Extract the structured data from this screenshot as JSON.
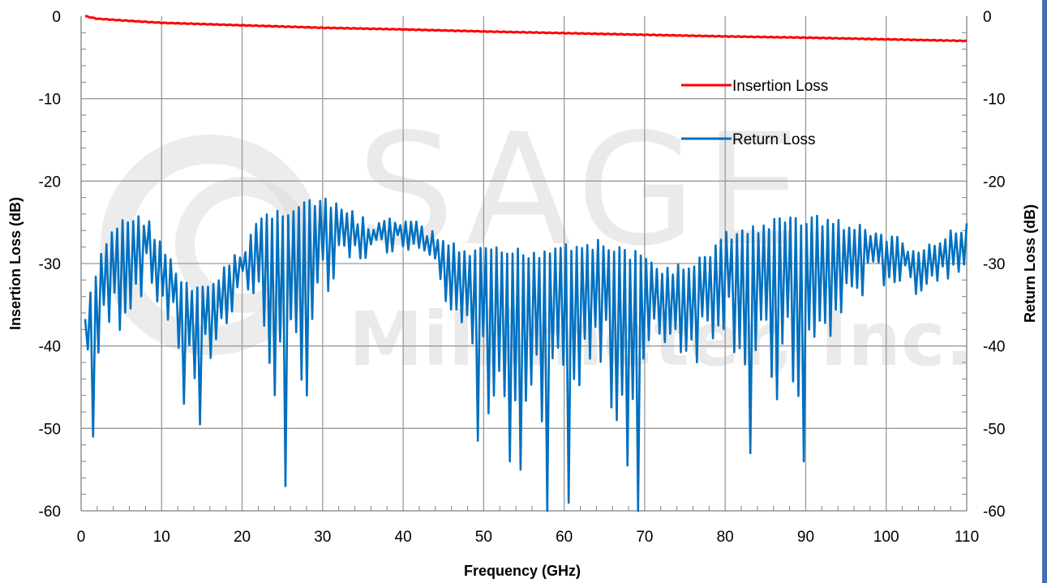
{
  "chart_data": {
    "type": "line",
    "xlabel": "Frequency (GHz)",
    "ylabel_left": "Insertion Loss (dB)",
    "ylabel_right": "Return Loss (dB)",
    "xlim": [
      0,
      110
    ],
    "ylim": [
      -60,
      0
    ],
    "xticks": [
      0,
      10,
      20,
      30,
      40,
      50,
      60,
      70,
      80,
      90,
      100,
      110
    ],
    "yticks": [
      0,
      -10,
      -20,
      -30,
      -40,
      -50,
      -60
    ],
    "grid": true,
    "legend_position": "upper-right",
    "watermark": {
      "line1": "SAGE",
      "line2": "Millimeter, Inc."
    },
    "colors": {
      "insertion": "#ff0000",
      "return": "#0070c0",
      "grid": "#999999",
      "axis": "#7f7f7f",
      "edge": "#4a6fb0"
    },
    "series": [
      {
        "name": "Insertion Loss",
        "axis": "left",
        "color": "#ff0000",
        "x": [
          0.5,
          2,
          5,
          10,
          20,
          30,
          40,
          50,
          60,
          70,
          80,
          90,
          100,
          110
        ],
        "y": [
          0,
          -0.3,
          -0.5,
          -0.8,
          -1.1,
          -1.4,
          -1.6,
          -1.85,
          -2.05,
          -2.25,
          -2.45,
          -2.6,
          -2.8,
          -3.0
        ]
      },
      {
        "name": "Return Loss",
        "axis": "right",
        "color": "#0070c0",
        "envelope_x": [
          0.5,
          1.5,
          3,
          5,
          8,
          10,
          12,
          14,
          16,
          18,
          20,
          22,
          25,
          28,
          30,
          33,
          36,
          40,
          44,
          47,
          50,
          53,
          57,
          60,
          64,
          68,
          72,
          76,
          80,
          84,
          88,
          92,
          96,
          100,
          104,
          108,
          110
        ],
        "envelope_top": [
          -36,
          -32,
          -27,
          -24,
          -24,
          -27,
          -31,
          -33,
          -32,
          -30,
          -28,
          -24,
          -23,
          -22,
          -22,
          -23,
          -25,
          -24,
          -26,
          -28,
          -28,
          -28,
          -28,
          -27,
          -27,
          -28,
          -30,
          -30,
          -26,
          -25,
          -24,
          -24,
          -25,
          -26,
          -28,
          -26,
          -25
        ],
        "envelope_bottom": [
          -41,
          -51,
          -43,
          -41,
          -35,
          -38,
          -43,
          -49,
          -45,
          -40,
          -33,
          -41,
          -57,
          -46,
          -40,
          -33,
          -30,
          -29,
          -30,
          -45,
          -52,
          -55,
          -60,
          -59,
          -47,
          -60,
          -42,
          -45,
          -40,
          -53,
          -54,
          -48,
          -37,
          -34,
          -35,
          -33,
          -31
        ],
        "minima": [
          [
            1.3,
            -51
          ],
          [
            12.5,
            -47
          ],
          [
            15,
            -49.5
          ],
          [
            25.3,
            -57
          ],
          [
            28,
            -46
          ],
          [
            49,
            -51.5
          ],
          [
            53.5,
            -54
          ],
          [
            54.5,
            -55
          ],
          [
            58,
            -60
          ],
          [
            60.5,
            -59
          ],
          [
            69,
            -60
          ],
          [
            83,
            -53
          ],
          [
            89.5,
            -54
          ]
        ],
        "cycles": 330,
        "seed": 7
      }
    ]
  }
}
